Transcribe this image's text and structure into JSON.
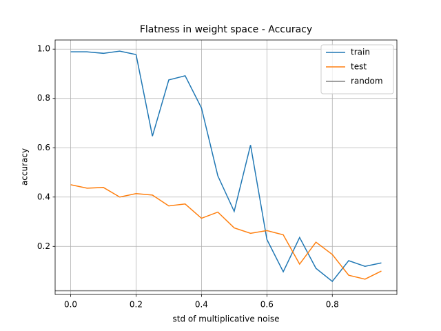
{
  "chart_data": {
    "type": "line",
    "title": "Flatness in weight space - Accuracy",
    "xlabel": "std of multiplicative noise",
    "ylabel": "accuracy",
    "x": [
      0,
      0.05,
      0.1,
      0.15,
      0.2,
      0.25,
      0.3,
      0.35,
      0.4,
      0.45,
      0.5,
      0.55,
      0.6,
      0.65,
      0.7,
      0.75,
      0.8,
      0.85,
      0.9,
      0.95
    ],
    "series": [
      {
        "name": "train",
        "color": "#1f77b4",
        "values": [
          0.989,
          0.989,
          0.983,
          0.992,
          0.978,
          0.647,
          0.875,
          0.892,
          0.761,
          0.486,
          0.342,
          0.611,
          0.228,
          0.097,
          0.236,
          0.111,
          0.058,
          0.142,
          0.119,
          0.133
        ]
      },
      {
        "name": "test",
        "color": "#ff7f0e",
        "values": [
          0.45,
          0.436,
          0.439,
          0.4,
          0.414,
          0.408,
          0.364,
          0.372,
          0.314,
          0.339,
          0.275,
          0.253,
          0.264,
          0.247,
          0.128,
          0.217,
          0.167,
          0.083,
          0.067,
          0.1
        ]
      }
    ],
    "hlines": [
      {
        "name": "random",
        "color": "#808080",
        "value": 0.02
      }
    ],
    "xlim": [
      -0.0475,
      0.9975
    ],
    "xticks": [
      {
        "value": 0,
        "label": "0.0"
      },
      0.2,
      0.4,
      0.6,
      0.8
    ],
    "ylim": [
      0.005,
      1.037
    ],
    "yticks": [
      0.2,
      0.4,
      0.6,
      0.8,
      {
        "value": 1,
        "label": "1.0"
      }
    ],
    "grid": true,
    "legend": "upper right"
  }
}
